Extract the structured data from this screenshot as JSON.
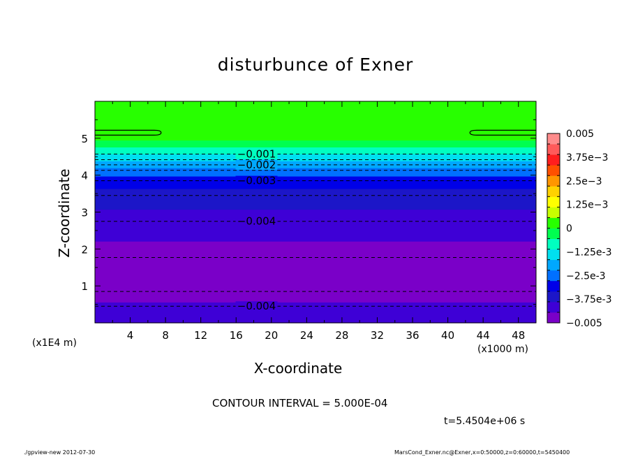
{
  "chart_data": {
    "type": "heatmap",
    "title": "disturbunce of Exner",
    "xlabel": "X-coordinate",
    "ylabel": "Z-coordinate",
    "x_unit": "(x1000 m)",
    "y_unit": "(x1E4 m)",
    "xlim": [
      0,
      50
    ],
    "ylim": [
      0,
      6
    ],
    "x_ticks": [
      4,
      8,
      12,
      16,
      20,
      24,
      28,
      32,
      36,
      40,
      44,
      48
    ],
    "y_ticks": [
      1,
      2,
      3,
      4,
      5
    ],
    "colorbar": {
      "range": [
        -0.005,
        0.005
      ],
      "tick_labels": [
        "0.005",
        "3.75e-3",
        "2.5e-3",
        "1.25e-3",
        "0",
        "-1.25e-3",
        "-2.5e-3",
        "-3.75e-3",
        "-0.005"
      ],
      "tick_values": [
        0.005,
        0.00375,
        0.0025,
        0.00125,
        0,
        -0.00125,
        -0.0025,
        -0.00375,
        -0.005
      ],
      "colors": [
        "#7a00c8",
        "#3e00d6",
        "#1c16c8",
        "#0000e8",
        "#0070ff",
        "#00a8ff",
        "#00e0f0",
        "#00ffc0",
        "#00ff50",
        "#28ff00",
        "#c8ff00",
        "#ffff00",
        "#ffd200",
        "#ff9600",
        "#ff5000",
        "#ff1e1e",
        "#ff5a5a",
        "#ff8c8c"
      ]
    },
    "profile_by_height": [
      {
        "z": 0.0,
        "value": -0.0039
      },
      {
        "z": 0.3,
        "value": -0.0042
      },
      {
        "z": 0.6,
        "value": -0.0045
      },
      {
        "z": 0.9,
        "value": -0.0047
      },
      {
        "z": 1.1,
        "value": -0.0049
      },
      {
        "z": 1.3,
        "value": -0.0049
      },
      {
        "z": 1.6,
        "value": -0.0047
      },
      {
        "z": 1.9,
        "value": -0.0046
      },
      {
        "z": 2.3,
        "value": -0.0044
      },
      {
        "z": 2.8,
        "value": -0.0041
      },
      {
        "z": 3.3,
        "value": -0.0037
      },
      {
        "z": 3.6,
        "value": -0.0034
      },
      {
        "z": 3.85,
        "value": -0.003
      },
      {
        "z": 4.1,
        "value": -0.0025
      },
      {
        "z": 4.3,
        "value": -0.002
      },
      {
        "z": 4.5,
        "value": -0.0013
      },
      {
        "z": 4.7,
        "value": -0.0007
      },
      {
        "z": 5.0,
        "value": 0.0001
      },
      {
        "z": 6.0,
        "value": 0.0001
      }
    ],
    "contours": [
      {
        "level": "-0.001",
        "z": 4.57,
        "style": "dashed",
        "labeled": true,
        "label_x": 18
      },
      {
        "level": "-0.0015",
        "z": 4.42,
        "style": "dashed",
        "labeled": false
      },
      {
        "level": "-0.002",
        "z": 4.28,
        "style": "dashed",
        "labeled": true,
        "label_x": 18
      },
      {
        "level": "-0.0025",
        "z": 4.13,
        "style": "dashed",
        "labeled": false
      },
      {
        "level": "-0.003",
        "z": 3.85,
        "style": "dashed",
        "labeled": true,
        "label_x": 18
      },
      {
        "level": "-0.0035",
        "z": 3.45,
        "style": "dashed",
        "labeled": false
      },
      {
        "level": "-0.004",
        "z": 2.75,
        "style": "dashed",
        "labeled": true,
        "label_x": 18
      },
      {
        "level": "-0.0045",
        "z": 1.77,
        "style": "dashed",
        "labeled": false
      },
      {
        "level": "-0.0045",
        "z": 0.85,
        "style": "dashed",
        "labeled": false
      },
      {
        "level": "-0.004",
        "z": 0.45,
        "style": "dashed",
        "labeled": true,
        "label_x": 18
      },
      {
        "level": "0",
        "z": 5.15,
        "style": "solid",
        "labeled": false,
        "edges": true
      }
    ]
  },
  "annotations": {
    "contour_interval": "CONTOUR INTERVAL = 5.000E-04",
    "time": "t=5.4504e+06 s",
    "footer_left": "./gpview-new  2012-07-30",
    "footer_right": "MarsCond_Exner.nc@Exner,x=0:50000,z=0:60000,t=5450400"
  }
}
